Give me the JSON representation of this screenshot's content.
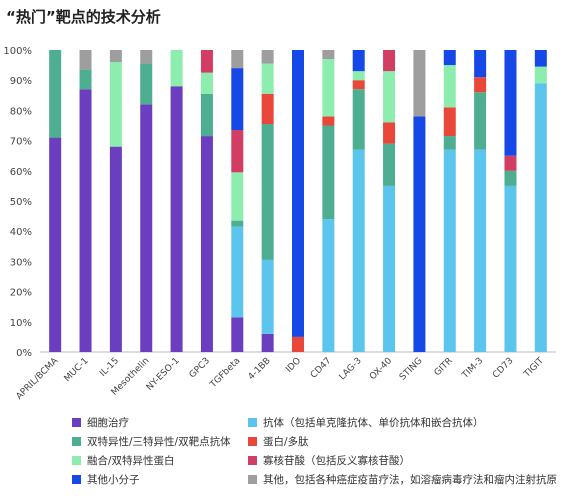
{
  "chart_data": {
    "type": "bar",
    "stacked": true,
    "title": "“热门”靶点的技术分析",
    "xlabel": "",
    "ylabel": "",
    "ylim": [
      0,
      100
    ],
    "yticks": [
      "0%",
      "10%",
      "20%",
      "30%",
      "40%",
      "50%",
      "60%",
      "70%",
      "80%",
      "90%",
      "100%"
    ],
    "grid": false,
    "legend_position": "bottom",
    "categories": [
      "APRIL/BCMA",
      "MUC-1",
      "IL-15",
      "Mesothelin",
      "NY-ESO-1",
      "GPC3",
      "TGFbeta",
      "4-1BB",
      "IDO",
      "CD47",
      "LAG-3",
      "OX-40",
      "STING",
      "GITR",
      "TIM-3",
      "CD73",
      "TIGIT"
    ],
    "series": [
      {
        "name": "细胞治疗",
        "color": "#6B3EC0",
        "values": [
          71,
          87,
          68,
          82,
          88,
          71.5,
          11.5,
          6,
          0,
          0,
          0,
          0,
          0,
          0,
          0,
          0,
          0
        ]
      },
      {
        "name": "抗体（包括单克隆抗体、单价抗体和嵌合抗体）",
        "color": "#5BC5EE",
        "values": [
          0,
          0,
          0,
          0,
          0,
          0,
          30,
          24.5,
          0,
          44,
          67,
          55,
          0,
          67,
          67,
          55,
          89
        ]
      },
      {
        "name": "双特异性/三特异性/双靶点抗体",
        "color": "#4DAE92",
        "values": [
          29,
          6.5,
          0,
          13.5,
          0,
          14,
          2,
          45,
          0,
          31,
          20,
          14,
          0,
          4.5,
          19,
          5,
          0
        ]
      },
      {
        "name": "蛋白/多肽",
        "color": "#E8473A",
        "values": [
          0,
          0,
          0,
          0,
          0,
          0,
          0,
          10,
          5,
          3,
          3,
          7,
          0,
          9.5,
          5,
          0,
          0
        ]
      },
      {
        "name": "融合/双特异性蛋白",
        "color": "#8DEDAE",
        "values": [
          0,
          0,
          28,
          0,
          12,
          7,
          16,
          10,
          0,
          19,
          3,
          17,
          0,
          14,
          0,
          0,
          5.5
        ]
      },
      {
        "name": "寡核苷酸（包括反义寡核苷酸）",
        "color": "#D23E63",
        "values": [
          0,
          0,
          0,
          0,
          0,
          7.5,
          14,
          0,
          0,
          0,
          0,
          7,
          0,
          0,
          0,
          5,
          0
        ]
      },
      {
        "name": "其他小分子",
        "color": "#1648E8",
        "values": [
          0,
          0,
          0,
          0,
          0,
          0,
          20.5,
          0,
          95,
          0,
          7,
          0,
          78,
          5,
          9,
          35,
          5.5
        ]
      },
      {
        "name": "其他，包括各种癌症疫苗疗法，如溶瘤病毒疗法和瘤内注射抗原",
        "color": "#9E9E9E",
        "values": [
          0,
          6.5,
          4,
          4.5,
          0,
          0,
          6,
          4.5,
          0,
          3,
          0,
          0,
          22,
          0,
          0,
          0,
          0
        ]
      }
    ]
  },
  "legend_order": [
    0,
    1,
    2,
    3,
    4,
    5,
    6,
    7
  ]
}
